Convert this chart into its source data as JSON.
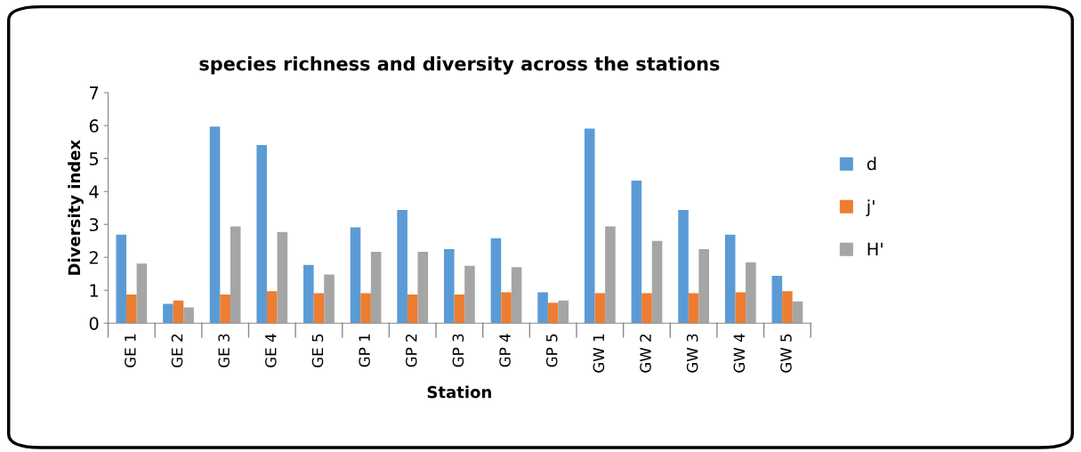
{
  "chart_data": {
    "type": "bar",
    "title": "species richness and diversity across the stations",
    "xlabel": "Station",
    "ylabel": "Diversity index",
    "categories": [
      "GE 1",
      "GE 2",
      "GE 3",
      "GE 4",
      "GE 5",
      "GP 1",
      "GP 2",
      "GP 3",
      "GP 4",
      "GP 5",
      "GW 1",
      "GW 2",
      "GW 3",
      "GW 4",
      "GW 5"
    ],
    "series": [
      {
        "name": "d",
        "color": "#5b9bd5",
        "values": [
          2.69,
          0.59,
          5.97,
          5.41,
          1.77,
          2.91,
          3.44,
          2.25,
          2.58,
          0.94,
          5.91,
          4.33,
          3.44,
          2.69,
          1.44
        ]
      },
      {
        "name": "j'",
        "color": "#ed7d31",
        "values": [
          0.87,
          0.69,
          0.87,
          0.97,
          0.91,
          0.91,
          0.87,
          0.87,
          0.94,
          0.62,
          0.91,
          0.91,
          0.91,
          0.94,
          0.97
        ]
      },
      {
        "name": "H'",
        "color": "#a5a5a5",
        "values": [
          1.81,
          0.48,
          2.94,
          2.77,
          1.48,
          2.17,
          2.17,
          1.74,
          1.7,
          0.69,
          2.94,
          2.5,
          2.25,
          1.85,
          0.66
        ]
      }
    ],
    "ylim": [
      0,
      7
    ],
    "yticks": [
      0,
      1,
      2,
      3,
      4,
      5,
      6,
      7
    ],
    "grid": false,
    "legend": "right"
  }
}
